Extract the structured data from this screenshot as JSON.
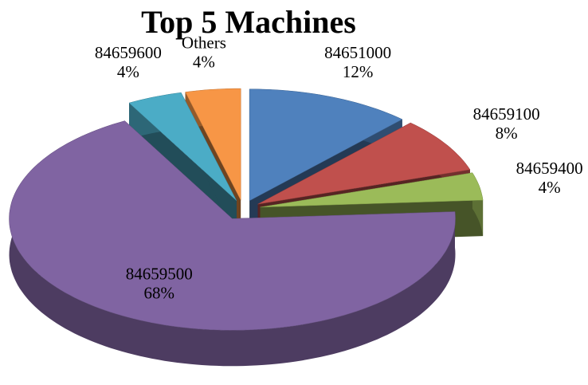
{
  "chart_data": {
    "type": "pie",
    "title": "Top 5 Machines",
    "categories": [
      "84651000",
      "84659100",
      "84659400",
      "84659500",
      "84659600",
      "Others"
    ],
    "values": [
      12,
      8,
      4,
      68,
      4,
      4
    ],
    "value_labels": [
      "12%",
      "8%",
      "4%",
      "68%",
      "4%",
      "4%"
    ],
    "colors": [
      "#4f81bd",
      "#c0504d",
      "#9bbb59",
      "#8064a2",
      "#4bacc6",
      "#f79646"
    ]
  }
}
